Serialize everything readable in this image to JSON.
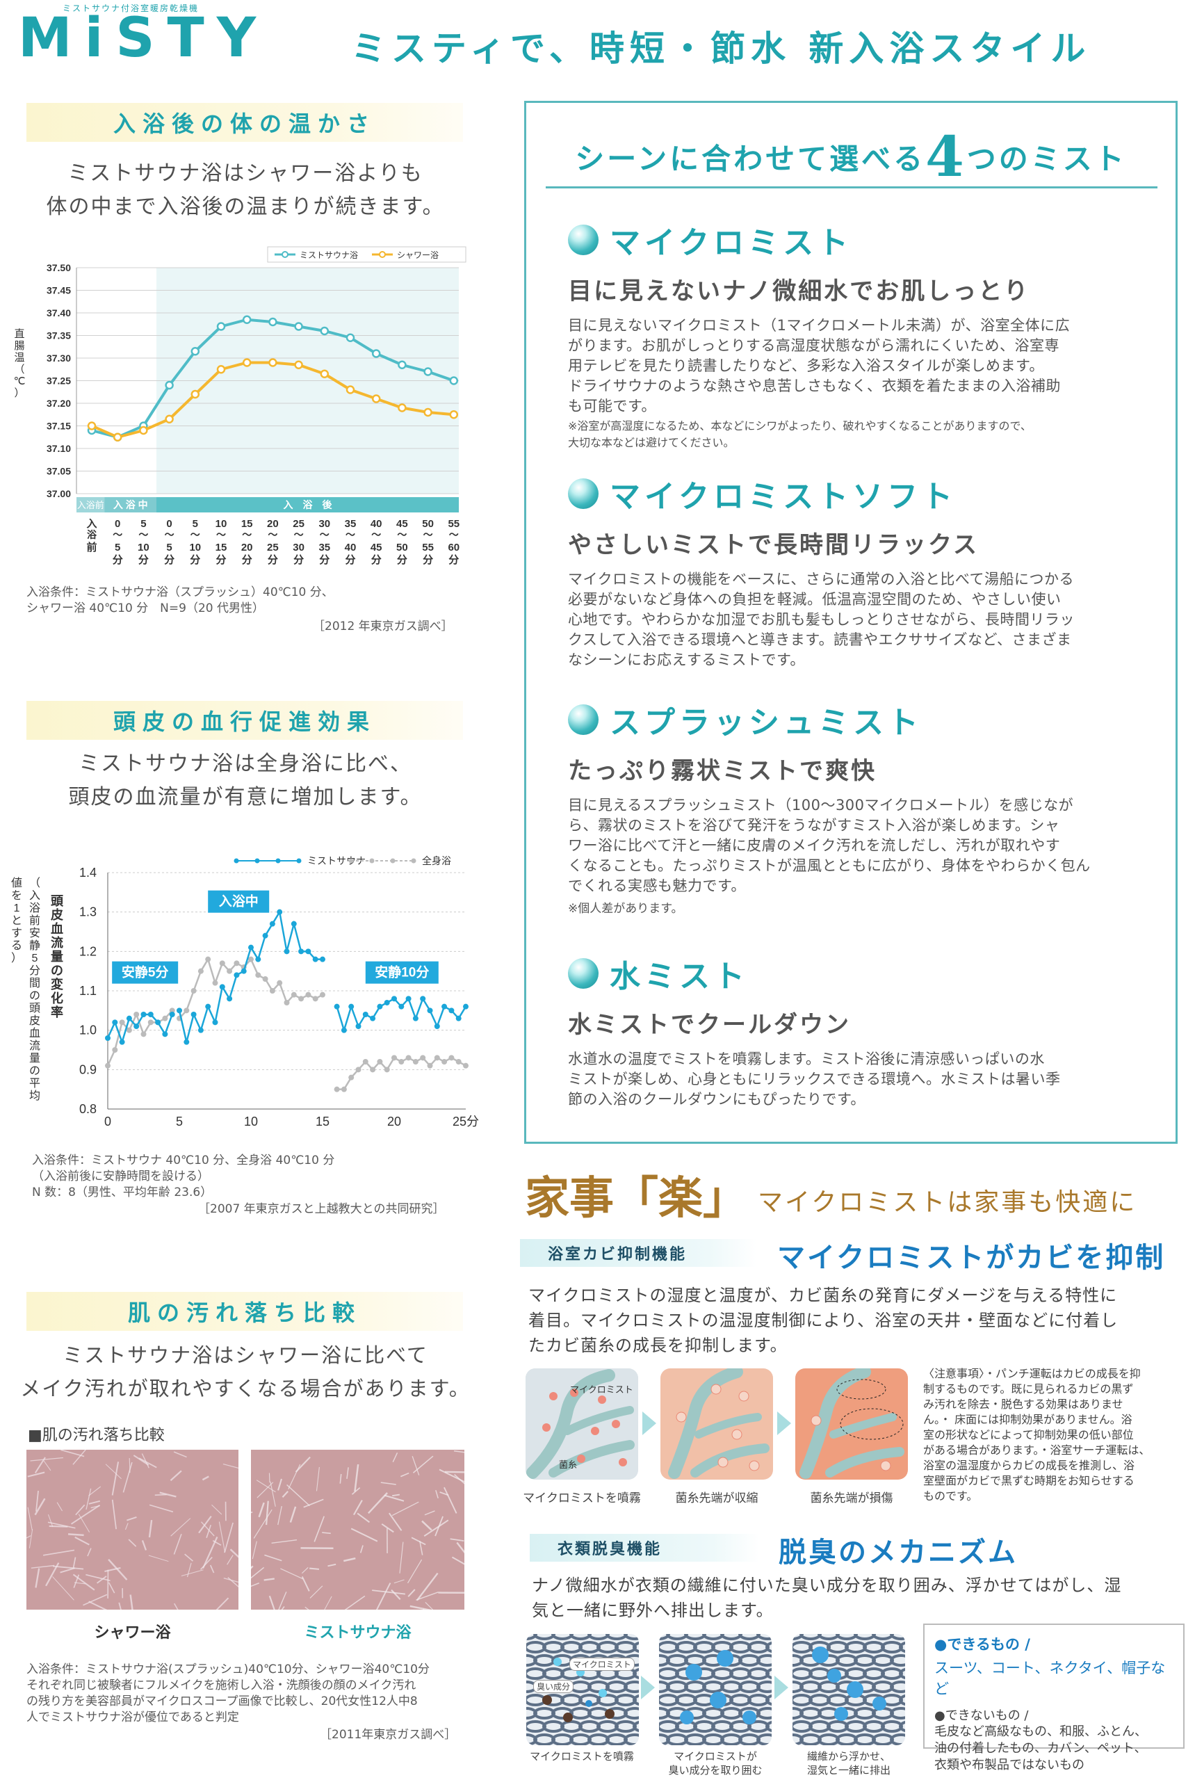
{
  "brand": {
    "name": "MiSTY",
    "sub": "ミストサウナ付浴室暖房乾燥機",
    "headline": "ミスティで、時短・節水 新入浴スタイル"
  },
  "warmth": {
    "title": "入浴後の体の温かさ",
    "lead": [
      "ミストサウナ浴はシャワー浴よりも",
      "体の中まで入浴後の温まりが続きます。"
    ],
    "note": [
      "入浴条件：ミストサウナ浴（スプラッシュ）40℃10 分、",
      "シャワー浴 40℃10 分　N=9（20 代男性）"
    ],
    "source": "［2012 年東京ガス調べ］"
  },
  "scalp": {
    "title": "頭皮の血行促進効果",
    "lead": [
      "ミストサウナ浴は全身浴に比べ、",
      "頭皮の血流量が有意に増加します。"
    ],
    "note": [
      "入浴条件：ミストサウナ 40℃10 分、全身浴 40℃10 分",
      "（入浴前後に安静時間を設ける）",
      "N 数：8（男性、平均年齢 23.6）"
    ],
    "source": "［2007 年東京ガスと上越教大との共同研究］"
  },
  "skin": {
    "title": "肌の汚れ落ち比較",
    "lead": [
      "ミストサウナ浴はシャワー浴に比べて",
      "メイク汚れが取れやすくなる場合があります。"
    ],
    "caption": "■肌の汚れ落ち比較",
    "left_label": "シャワー浴",
    "right_label": "ミストサウナ浴",
    "note": [
      "入浴条件：ミストサウナ浴(スプラッシュ)40℃10分、シャワー浴40℃10分",
      "それぞれ同じ被験者にフルメイクを施術し入浴・洗顔後の顔のメイク汚れ",
      "の残り方を美容部員がマイクロスコープ画像で比較し、20代女性12人中8",
      "人でミストサウナ浴が優位であると判定"
    ],
    "source": "［2011年東京ガス調べ］"
  },
  "mists": {
    "title_pre": "シーンに合わせて選べる",
    "title_num": "4",
    "title_post": "つのミスト",
    "items": [
      {
        "name": "マイクロミスト",
        "sub": "目に見えないナノ微細水でお肌しっとり",
        "body": [
          "目に見えないマイクロミスト（1マイクロメートル未満）が、浴室全体に広",
          "がります。お肌がしっとりする高湿度状態ながら濡れにくいため、浴室専",
          "用テレビを見たり読書したりなど、多彩な入浴スタイルが楽しめます。",
          "ドライサウナのような熱さや息苦しさもなく、衣類を着たままの入浴補助",
          "も可能です。"
        ],
        "note": [
          "※浴室が高湿度になるため、本などにシワがよったり、破れやすくなることがありますので、",
          "大切な本などは避けてください。"
        ]
      },
      {
        "name": "マイクロミストソフト",
        "sub": "やさしいミストで長時間リラックス",
        "body": [
          "マイクロミストの機能をベースに、さらに通常の入浴と比べて湯船につかる",
          "必要がないなど身体への負担を軽減。低温高湿空間のため、やさしい使い",
          "心地です。やわらかな加湿でお肌も髪もしっとりさせながら、長時間リラッ",
          "クスして入浴できる環境へと導きます。読書やエクササイズなど、さまざま",
          "なシーンにお応えするミストです。"
        ],
        "note": []
      },
      {
        "name": "スプラッシュミスト",
        "sub": "たっぷり霧状ミストで爽快",
        "body": [
          "目に見えるスプラッシュミスト（100～300マイクロメートル）を感じなが",
          "ら、霧状のミストを浴びて発汗をうながすミスト入浴が楽しめます。シャ",
          "ワー浴に比べて汗と一緒に皮膚のメイク汚れを流しだし、汚れが取れやす",
          "くなることも。たっぷりミストが温風とともに広がり、身体をやわらかく包ん",
          "でくれる実感も魅力です。"
        ],
        "note": [
          "※個人差があります。"
        ]
      },
      {
        "name": "水ミスト",
        "sub": "水ミストでクールダウン",
        "body": [
          "水道水の温度でミストを噴霧します。ミスト浴後に清涼感いっぱいの水",
          "ミストが楽しめ、心身ともにリラックスできる環境へ。水ミストは暑い季",
          "節の入浴のクールダウンにもぴったりです。"
        ],
        "note": []
      }
    ]
  },
  "kaji": {
    "title": "家事「楽」",
    "subtitle": "マイクロミストは家事も快適に",
    "mold": {
      "tag": "浴室カビ抑制機能",
      "head": "マイクロミストがカビを抑制",
      "body": [
        "マイクロミストの湿度と温度が、カビ菌糸の発育にダメージを与える特性に",
        "着目。マイクロミストの温湿度制御により、浴室の天井・壁面などに付着し",
        "たカビ菌糸の成長を抑制します。"
      ],
      "labels": [
        "マイクロミスト",
        "菌糸"
      ],
      "captions": [
        "マイクロミストを噴霧",
        "菌糸先端が収縮",
        "菌糸先端が損傷"
      ],
      "note": [
        "〈注意事項〉・パンチ運転はカビの成長を抑",
        "制するものです。既に見られるカビの黒ず",
        "み汚れを除去・脱色する効果はありませ",
        "ん。・ 床面には抑制効果がありません。浴",
        "室の形状などによって抑制効果の低い部位",
        "がある場合があります。・浴室サーチ運転は、",
        "浴室の温湿度からカビの成長を推測し、浴",
        "室壁面がカビで黒ずむ時期をお知らせする",
        "ものです。"
      ]
    },
    "odor": {
      "tag": "衣類脱臭機能",
      "head": "脱臭のメカニズム",
      "body": [
        "ナノ微細水が衣類の繊維に付いた臭い成分を取り囲み、浮かせてはがし、湿",
        "気と一緒に野外へ排出します。"
      ],
      "labels": [
        "マイクロミスト",
        "臭い成分"
      ],
      "captions": [
        [
          "マイクロミストを噴霧"
        ],
        [
          "マイクロミストが",
          "臭い成分を取り囲む"
        ],
        [
          "繊維から浮かせ、",
          "湿気と一緒に排出"
        ]
      ],
      "can_title": "●できるもの /",
      "can_body": "スーツ、コート、ネクタイ、帽子など",
      "cannot_title": "●できないもの /",
      "cannot_body": [
        "毛皮など高級なもの、和服、ふとん、",
        "油の付着したもの、カバン、ペット、",
        "衣類や布製品ではないもの"
      ]
    }
  },
  "chart_data": [
    {
      "type": "line",
      "title": "",
      "legend": [
        "ミストサウナ浴",
        "シャワー浴"
      ],
      "legend_position": "top-right",
      "ylabel": "直腸温（℃）",
      "ylim": [
        37.0,
        37.5
      ],
      "yticks": [
        "37.50",
        "37.45",
        "37.40",
        "37.35",
        "37.30",
        "37.25",
        "37.20",
        "37.15",
        "37.10",
        "37.05",
        "37.00"
      ],
      "phases": [
        "入浴前",
        "入 浴 中",
        "入　浴　後"
      ],
      "categories": [
        "入浴前",
        "0〜5分",
        "5〜10分",
        "0〜5分",
        "5〜10分",
        "10〜15分",
        "15〜20分",
        "20〜25分",
        "25〜30分",
        "30〜35分",
        "35〜40分",
        "40〜45分",
        "45〜50分",
        "50〜55分",
        "55〜60分"
      ],
      "xtick_top": [
        "入",
        "0",
        "5",
        "0",
        "5",
        "10",
        "15",
        "20",
        "25",
        "30",
        "35",
        "40",
        "45",
        "50",
        "55"
      ],
      "xtick_mid": [
        "浴",
        "〜",
        "〜",
        "〜",
        "〜",
        "〜",
        "〜",
        "〜",
        "〜",
        "〜",
        "〜",
        "〜",
        "〜",
        "〜",
        "〜"
      ],
      "xtick_bot": [
        "前",
        "5",
        "10",
        "5",
        "10",
        "15",
        "20",
        "25",
        "30",
        "35",
        "40",
        "45",
        "50",
        "55",
        "60"
      ],
      "xtick_unit": "分",
      "colors": [
        "#4fbcc7",
        "#f5b72f"
      ],
      "series": [
        {
          "name": "ミストサウナ浴",
          "values": [
            37.14,
            37.125,
            37.15,
            37.24,
            37.315,
            37.37,
            37.385,
            37.38,
            37.37,
            37.36,
            37.345,
            37.31,
            37.285,
            37.27,
            37.25
          ]
        },
        {
          "name": "シャワー浴",
          "values": [
            37.15,
            37.125,
            37.14,
            37.165,
            37.22,
            37.275,
            37.29,
            37.29,
            37.285,
            37.265,
            37.23,
            37.21,
            37.19,
            37.18,
            37.175
          ]
        }
      ]
    },
    {
      "type": "line",
      "title": "",
      "legend": [
        "ミストサウナ",
        "全身浴"
      ],
      "legend_position": "top-right",
      "ylabel": "頭皮血流量の変化率",
      "ylabel2": "（入浴前安静5分間の頭皮血流量の平均値を1とする）",
      "xlim": [
        0,
        25
      ],
      "ylim": [
        0.8,
        1.4
      ],
      "xticks": [
        "0",
        "5",
        "10",
        "15",
        "20",
        "25分"
      ],
      "yticks": [
        "1.4",
        "1.3",
        "1.2",
        "1.1",
        "1.0",
        "0.9",
        "0.8"
      ],
      "annotations": [
        "安静5分",
        "入浴中",
        "安静10分"
      ],
      "colors": [
        "#1aa6d9",
        "#bbbbbb"
      ],
      "series": [
        {
          "name": "ミストサウナ",
          "segments": [
            {
              "x": [
                0,
                0.5,
                1,
                1.5,
                2,
                2.5,
                3,
                3.5,
                4,
                4.5
              ],
              "y": [
                0.98,
                1.02,
                0.97,
                1.03,
                1.01,
                1.04,
                1.04,
                1.02,
                0.99,
                1.04
              ]
            },
            {
              "x": [
                5,
                5.5,
                6,
                6.5,
                7,
                7.5,
                8,
                8.5,
                9,
                9.5,
                10,
                10.5,
                11,
                11.5,
                12,
                12.5,
                13,
                13.5,
                14,
                14.5,
                15
              ],
              "y": [
                1.05,
                0.97,
                1.04,
                1.0,
                1.06,
                1.02,
                1.11,
                1.08,
                1.14,
                1.15,
                1.21,
                1.18,
                1.24,
                1.27,
                1.3,
                1.2,
                1.27,
                1.2,
                1.2,
                1.18,
                1.18
              ]
            },
            {
              "x": [
                16,
                16.5,
                17,
                17.5,
                18,
                18.5,
                19,
                19.5,
                20,
                20.5,
                21,
                21.5,
                22,
                22.5,
                23,
                23.5,
                24,
                24.5,
                25
              ],
              "y": [
                1.06,
                1.0,
                1.06,
                1.01,
                1.04,
                1.03,
                1.06,
                1.07,
                1.08,
                1.06,
                1.08,
                1.03,
                1.08,
                1.05,
                1.01,
                1.06,
                1.05,
                1.03,
                1.06
              ]
            }
          ]
        },
        {
          "name": "全身浴",
          "segments": [
            {
              "x": [
                0,
                0.5,
                1,
                1.5,
                2,
                2.5,
                3,
                3.5,
                4,
                4.5
              ],
              "y": [
                0.91,
                0.95,
                1.02,
                1.0,
                1.04,
                0.99,
                1.02,
                1.02,
                1.03,
                1.05
              ]
            },
            {
              "x": [
                5,
                5.5,
                6,
                6.5,
                7,
                7.5,
                8,
                8.5,
                9,
                9.5,
                10,
                10.5,
                11,
                11.5,
                12,
                12.5,
                13,
                13.5,
                14,
                14.5,
                15
              ],
              "y": [
                1.03,
                1.05,
                1.1,
                1.15,
                1.18,
                1.12,
                1.17,
                1.15,
                1.17,
                1.16,
                1.18,
                1.14,
                1.13,
                1.1,
                1.12,
                1.07,
                1.09,
                1.08,
                1.09,
                1.08,
                1.09
              ]
            },
            {
              "x": [
                16,
                16.5,
                17,
                17.5,
                18,
                18.5,
                19,
                19.5,
                20,
                20.5,
                21,
                21.5,
                22,
                22.5,
                23,
                23.5,
                24,
                24.5,
                25
              ],
              "y": [
                0.85,
                0.85,
                0.88,
                0.9,
                0.92,
                0.9,
                0.92,
                0.9,
                0.93,
                0.92,
                0.93,
                0.92,
                0.93,
                0.91,
                0.93,
                0.92,
                0.93,
                0.92,
                0.91
              ]
            }
          ]
        }
      ]
    }
  ]
}
